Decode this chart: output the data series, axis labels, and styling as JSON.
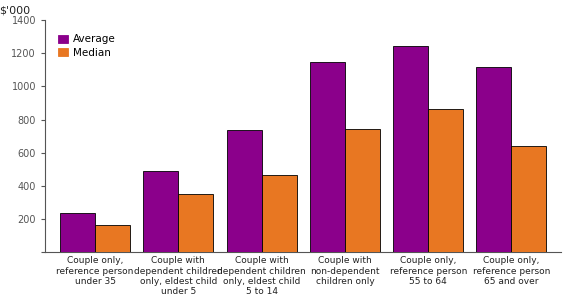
{
  "categories": [
    "Couple only,\nreference person\nunder 35",
    "Couple with\ndependent children\nonly, eldest child\nunder 5",
    "Couple with\ndependent children\nonly, eldest child\n5 to 14",
    "Couple with\nnon-dependent\nchildren only",
    "Couple only,\nreference person\n55 to 64",
    "Couple only,\nreference person\n65 and over"
  ],
  "average": [
    235,
    490,
    740,
    1145,
    1245,
    1120
  ],
  "median": [
    165,
    350,
    465,
    745,
    865,
    640
  ],
  "color_average": "#8B008B",
  "color_median": "#E87722",
  "ylabel_text": "$’000",
  "ylim": [
    0,
    1400
  ],
  "yticks": [
    0,
    200,
    400,
    600,
    800,
    1000,
    1200,
    1400
  ],
  "grid_color": "#FFFFFF",
  "background_color": "#FFFFFF",
  "plot_bg_color": "#FFFFFF",
  "bar_width": 0.42,
  "bar_edge_color": "#000000",
  "bar_edge_width": 0.6,
  "legend_labels": [
    "Average",
    "Median"
  ],
  "spine_color": "#555555",
  "tick_fontsize": 7,
  "xlabel_fontsize": 6.5,
  "ylabel_top_fontsize": 8
}
